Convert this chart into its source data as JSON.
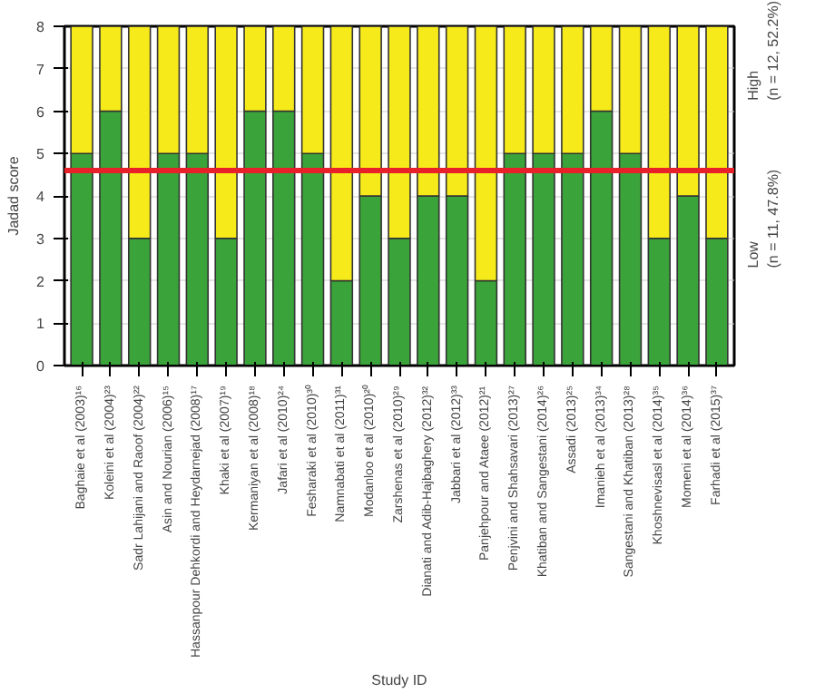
{
  "chart_data": {
    "type": "bar",
    "stacked": true,
    "xlabel": "Study ID",
    "ylabel": "Jadad score",
    "categories": [
      "Baghaie et al (2003)¹⁶",
      "Koleini et al (2004)²³",
      "Sadr Lahijani and Raoof (2004)²²",
      "Asin and Nourian (2006)¹⁵",
      "Hassanpour Dehkordi and Heydarnejad (2008)¹⁷",
      "Khaki et al (2007)¹⁹",
      "Kermaniyan et al (2008)¹⁸",
      "Jafari et al (2010)²⁴",
      "Fesharaki et al (2010)³⁰",
      "Namnabati et al (2011)³¹",
      "Modanloo et al (2010)²⁰",
      "Zarshenas et al (2010)²⁹",
      "Dianati and Adib-Hajbaghery (2012)³²",
      "Jabbari et al (2012)³³",
      "Panjehpour and Ataee (2012)²¹",
      "Penjvini and Shahsavari (2013)²⁷",
      "Khatiban and Sangestani (2014)²⁶",
      "Assadi (2013)²⁵",
      "Imanieh et al (2013)³⁴",
      "Sangestani and Khatiban (2013)²⁸",
      "Khoshnevisasl et al (2014)³⁵",
      "Momeni et al (2014)³⁶",
      "Farhadi et al (2015)³⁷"
    ],
    "series": [
      {
        "color": "#3aa33a",
        "values": [
          5,
          6,
          3,
          5,
          5,
          3,
          6,
          6,
          5,
          2,
          4,
          3,
          4,
          4,
          2,
          5,
          5,
          5,
          6,
          5,
          3,
          4,
          3
        ]
      },
      {
        "color": "#f7ea1a",
        "values": [
          3,
          2,
          5,
          3,
          3,
          5,
          2,
          2,
          3,
          6,
          4,
          5,
          4,
          4,
          6,
          3,
          3,
          3,
          2,
          3,
          5,
          4,
          5
        ]
      }
    ],
    "ylim": [
      0,
      8
    ],
    "yticks": [
      0,
      1,
      2,
      3,
      4,
      5,
      6,
      7,
      8
    ],
    "grid": "y",
    "ref_lines": [
      {
        "axis": "y",
        "value": 4.6,
        "color": "#e8202a"
      }
    ],
    "annotations": [
      "High\n(n = 12, 52.2%)",
      "Low\n(n = 11, 47.8%)"
    ]
  }
}
